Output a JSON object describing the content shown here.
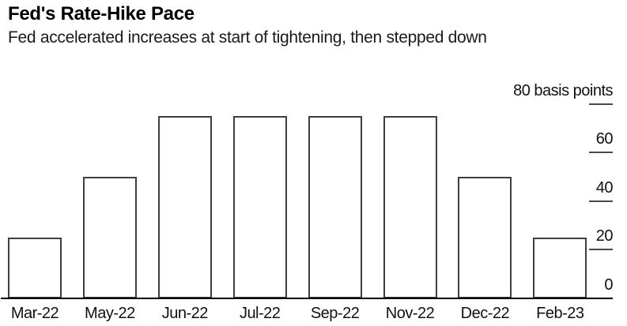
{
  "header": {
    "title": "Fed's Rate-Hike Pace",
    "subtitle": "Fed accelerated increases at start of tightening, then stepped down"
  },
  "chart_data": {
    "type": "bar",
    "title": "Fed's Rate-Hike Pace",
    "subtitle": "Fed accelerated increases at start of tightening, then stepped down",
    "categories": [
      "Mar-22",
      "May-22",
      "Jun-22",
      "Jul-22",
      "Sep-22",
      "Nov-22",
      "Dec-22",
      "Feb-23"
    ],
    "values": [
      25,
      50,
      75,
      75,
      75,
      75,
      50,
      25
    ],
    "xlabel": "",
    "ylabel": "basis points",
    "ylim": [
      0,
      80
    ],
    "y_ticks": [
      0,
      20,
      40,
      60,
      80
    ],
    "y_tick_labels": [
      "0",
      "20",
      "40",
      "60",
      "80 basis points"
    ],
    "y_axis_side": "right",
    "grid": false,
    "legend": "none",
    "colors": {
      "bar_fill": "#ffffff",
      "bar_stroke": "#3f3f3f",
      "axis_line": "#000000",
      "tick_mark": "#4a4a4a",
      "text": "#111111"
    }
  }
}
